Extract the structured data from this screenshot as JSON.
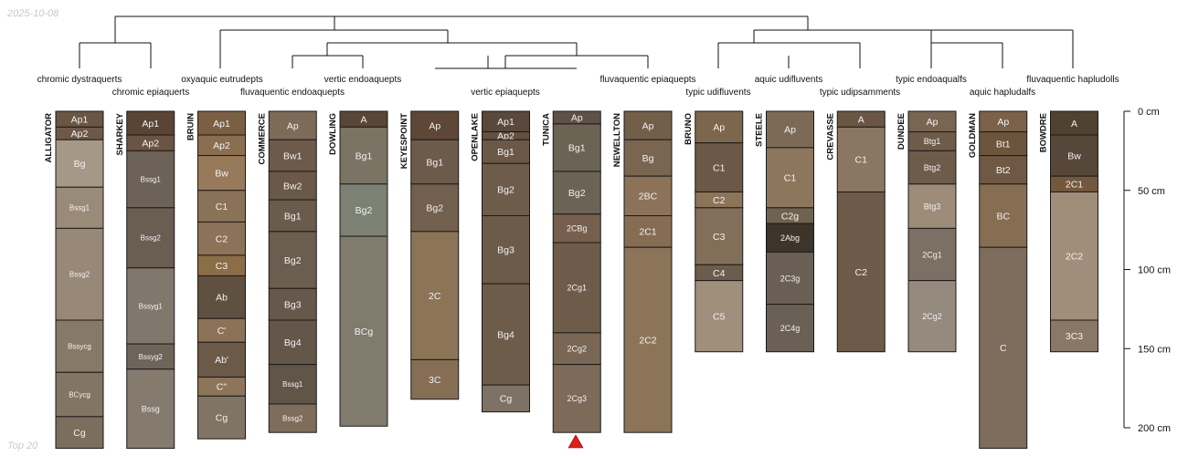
{
  "date": "2025-10-08",
  "footnote": "Top 20",
  "depth_axis": {
    "unit": "cm",
    "max": 200,
    "ticks": [
      "0 cm",
      "50 cm",
      "100 cm",
      "150 cm",
      "200 cm"
    ],
    "tick_values": [
      0,
      50,
      100,
      150,
      200
    ]
  },
  "taxa": {
    "t1": "chromic dystraquerts",
    "t2": "chromic epiaquerts",
    "t3": "oxyaquic eutrudepts",
    "t4": "fluvaquentic endoaquepts",
    "t5": "vertic endoaquepts",
    "t6": "vertic epiaquepts",
    "t7": "fluvaquentic epiaquepts",
    "t8": "typic udifluvents",
    "t9": "aquic udifluvents",
    "t10": "typic udipsamments",
    "t11": "typic endoaqualfs",
    "t12": "aquic hapludalfs",
    "t13": "fluvaquentic hapludolls"
  },
  "profiles": [
    {
      "name": "ALLIGATOR",
      "horizons": [
        {
          "name": "Ap1",
          "top": 0,
          "bottom": 10,
          "color": "#6b5644"
        },
        {
          "name": "Ap2",
          "top": 10,
          "bottom": 18,
          "color": "#6e5949"
        },
        {
          "name": "Bg",
          "top": 18,
          "bottom": 48,
          "color": "#a59886"
        },
        {
          "name": "Bssg1",
          "top": 48,
          "bottom": 74,
          "color": "#9a8b78"
        },
        {
          "name": "Bssg2",
          "top": 74,
          "bottom": 132,
          "color": "#978877"
        },
        {
          "name": "Bssycg",
          "top": 132,
          "bottom": 165,
          "color": "#877968"
        },
        {
          "name": "BCycg",
          "top": 165,
          "bottom": 193,
          "color": "#837563"
        },
        {
          "name": "Cg",
          "top": 193,
          "bottom": 213,
          "color": "#7b6e5d"
        }
      ]
    },
    {
      "name": "SHARKEY",
      "horizons": [
        {
          "name": "Ap1",
          "top": 0,
          "bottom": 15,
          "color": "#5a4535"
        },
        {
          "name": "Ap2",
          "top": 15,
          "bottom": 25,
          "color": "#6b5443"
        },
        {
          "name": "Bssg1",
          "top": 25,
          "bottom": 61,
          "color": "#6d6257"
        },
        {
          "name": "Bssg2",
          "top": 61,
          "bottom": 99,
          "color": "#6a5d52"
        },
        {
          "name": "Bssyg1",
          "top": 99,
          "bottom": 147,
          "color": "#80786c"
        },
        {
          "name": "Bssyg2",
          "top": 147,
          "bottom": 163,
          "color": "#6e655a"
        },
        {
          "name": "Bssg",
          "top": 163,
          "bottom": 213,
          "color": "#857a6e"
        }
      ]
    },
    {
      "name": "BRUIN",
      "horizons": [
        {
          "name": "Ap1",
          "top": 0,
          "bottom": 15,
          "color": "#7a5f42"
        },
        {
          "name": "Ap2",
          "top": 15,
          "bottom": 28,
          "color": "#8a6e50"
        },
        {
          "name": "Bw",
          "top": 28,
          "bottom": 50,
          "color": "#977a5a"
        },
        {
          "name": "C1",
          "top": 50,
          "bottom": 70,
          "color": "#8a7259"
        },
        {
          "name": "C2",
          "top": 70,
          "bottom": 91,
          "color": "#8b7258"
        },
        {
          "name": "C3",
          "top": 91,
          "bottom": 104,
          "color": "#8b6d48"
        },
        {
          "name": "Ab",
          "top": 104,
          "bottom": 131,
          "color": "#5f5040"
        },
        {
          "name": "C'",
          "top": 131,
          "bottom": 146,
          "color": "#8c7256"
        },
        {
          "name": "Ab'",
          "top": 146,
          "bottom": 168,
          "color": "#6b5a48"
        },
        {
          "name": "C''",
          "top": 168,
          "bottom": 180,
          "color": "#8c7559"
        },
        {
          "name": "Cg",
          "top": 180,
          "bottom": 207,
          "color": "#807565"
        }
      ]
    },
    {
      "name": "COMMERCE",
      "horizons": [
        {
          "name": "Ap",
          "top": 0,
          "bottom": 18,
          "color": "#7d6a57"
        },
        {
          "name": "Bw1",
          "top": 18,
          "bottom": 38,
          "color": "#6c5a4a"
        },
        {
          "name": "Bw2",
          "top": 38,
          "bottom": 56,
          "color": "#6a5948"
        },
        {
          "name": "Bg1",
          "top": 56,
          "bottom": 76,
          "color": "#6b5b4c"
        },
        {
          "name": "Bg2",
          "top": 76,
          "bottom": 112,
          "color": "#6b5d4f"
        },
        {
          "name": "Bg3",
          "top": 112,
          "bottom": 132,
          "color": "#66584a"
        },
        {
          "name": "Bg4",
          "top": 132,
          "bottom": 160,
          "color": "#645649"
        },
        {
          "name": "Bssg1",
          "top": 160,
          "bottom": 185,
          "color": "#615548"
        },
        {
          "name": "Bssg2",
          "top": 185,
          "bottom": 203,
          "color": "#7e6d5a"
        }
      ]
    },
    {
      "name": "DOWLING",
      "horizons": [
        {
          "name": "A",
          "top": 0,
          "bottom": 10,
          "color": "#5a4636"
        },
        {
          "name": "Bg1",
          "top": 10,
          "bottom": 46,
          "color": "#7b7363"
        },
        {
          "name": "Bg2",
          "top": 46,
          "bottom": 79,
          "color": "#7c8173"
        },
        {
          "name": "BCg",
          "top": 79,
          "bottom": 199,
          "color": "#817b6e"
        }
      ]
    },
    {
      "name": "KEYESPOINT",
      "horizons": [
        {
          "name": "Ap",
          "top": 0,
          "bottom": 18,
          "color": "#5e4737"
        },
        {
          "name": "Bg1",
          "top": 18,
          "bottom": 46,
          "color": "#6c5a4b"
        },
        {
          "name": "Bg2",
          "top": 46,
          "bottom": 76,
          "color": "#725f4d"
        },
        {
          "name": "2C",
          "top": 76,
          "bottom": 157,
          "color": "#8c7457"
        },
        {
          "name": "3C",
          "top": 157,
          "bottom": 182,
          "color": "#866e55"
        }
      ]
    },
    {
      "name": "OPENLAKE",
      "horizons": [
        {
          "name": "Ap1",
          "top": 0,
          "bottom": 13,
          "color": "#59483b"
        },
        {
          "name": "Ap2",
          "top": 13,
          "bottom": 18,
          "color": "#645140"
        },
        {
          "name": "Bg1",
          "top": 18,
          "bottom": 33,
          "color": "#6b5847"
        },
        {
          "name": "Bg2",
          "top": 33,
          "bottom": 66,
          "color": "#6e5c4b"
        },
        {
          "name": "Bg3",
          "top": 66,
          "bottom": 109,
          "color": "#6d5b4a"
        },
        {
          "name": "Bg4",
          "top": 109,
          "bottom": 173,
          "color": "#6e5c4a"
        },
        {
          "name": "Cg",
          "top": 173,
          "bottom": 190,
          "color": "#7e7264"
        }
      ]
    },
    {
      "name": "TUNICA",
      "horizons": [
        {
          "name": "Ap",
          "top": 0,
          "bottom": 8,
          "color": "#5f5147"
        },
        {
          "name": "Bg1",
          "top": 8,
          "bottom": 38,
          "color": "#6b6455"
        },
        {
          "name": "Bg2",
          "top": 38,
          "bottom": 65,
          "color": "#6b6356"
        },
        {
          "name": "2CBg",
          "top": 65,
          "bottom": 83,
          "color": "#765f4d"
        },
        {
          "name": "2Cg1",
          "top": 83,
          "bottom": 140,
          "color": "#6e5b4a"
        },
        {
          "name": "2Cg2",
          "top": 140,
          "bottom": 160,
          "color": "#7a6655"
        },
        {
          "name": "2Cg3",
          "top": 160,
          "bottom": 203,
          "color": "#7d6a58"
        }
      ]
    },
    {
      "name": "NEWELLTON",
      "horizons": [
        {
          "name": "Ap",
          "top": 0,
          "bottom": 18,
          "color": "#735e4a"
        },
        {
          "name": "Bg",
          "top": 18,
          "bottom": 41,
          "color": "#7a6551"
        },
        {
          "name": "2BC",
          "top": 41,
          "bottom": 66,
          "color": "#8c7258"
        },
        {
          "name": "2C1",
          "top": 66,
          "bottom": 86,
          "color": "#866c53"
        },
        {
          "name": "2C2",
          "top": 86,
          "bottom": 203,
          "color": "#8c7458"
        }
      ]
    },
    {
      "name": "BRUNO",
      "horizons": [
        {
          "name": "Ap",
          "top": 0,
          "bottom": 20,
          "color": "#7c664c"
        },
        {
          "name": "C1",
          "top": 20,
          "bottom": 51,
          "color": "#6b5847"
        },
        {
          "name": "C2",
          "top": 51,
          "bottom": 61,
          "color": "#8e7457"
        },
        {
          "name": "C3",
          "top": 61,
          "bottom": 97,
          "color": "#836e5a"
        },
        {
          "name": "C4",
          "top": 97,
          "bottom": 107,
          "color": "#6b5c4c"
        },
        {
          "name": "C5",
          "top": 107,
          "bottom": 152,
          "color": "#a08f7b"
        }
      ]
    },
    {
      "name": "STEELE",
      "horizons": [
        {
          "name": "Ap",
          "top": 0,
          "bottom": 23,
          "color": "#7d6a56"
        },
        {
          "name": "C1",
          "top": 23,
          "bottom": 61,
          "color": "#8d775c"
        },
        {
          "name": "C2g",
          "top": 61,
          "bottom": 71,
          "color": "#6e6350"
        },
        {
          "name": "2Abg",
          "top": 71,
          "bottom": 89,
          "color": "#3d342a"
        },
        {
          "name": "2C3g",
          "top": 89,
          "bottom": 122,
          "color": "#6a5f55"
        },
        {
          "name": "2C4g",
          "top": 122,
          "bottom": 152,
          "color": "#6b6055"
        }
      ]
    },
    {
      "name": "CREVASSE",
      "horizons": [
        {
          "name": "A",
          "top": 0,
          "bottom": 10,
          "color": "#6b5644"
        },
        {
          "name": "C1",
          "top": 10,
          "bottom": 51,
          "color": "#8a7663"
        },
        {
          "name": "C2",
          "top": 51,
          "bottom": 152,
          "color": "#6e5a48"
        }
      ]
    },
    {
      "name": "DUNDEE",
      "horizons": [
        {
          "name": "Ap",
          "top": 0,
          "bottom": 13,
          "color": "#7a6551"
        },
        {
          "name": "Btg1",
          "top": 13,
          "bottom": 25,
          "color": "#6e5b49"
        },
        {
          "name": "Btg2",
          "top": 25,
          "bottom": 46,
          "color": "#6e5c4b"
        },
        {
          "name": "Btg3",
          "top": 46,
          "bottom": 74,
          "color": "#9c8c78"
        },
        {
          "name": "2Cg1",
          "top": 74,
          "bottom": 107,
          "color": "#7b7063"
        },
        {
          "name": "2Cg2",
          "top": 107,
          "bottom": 152,
          "color": "#948a7e"
        }
      ]
    },
    {
      "name": "GOLDMAN",
      "horizons": [
        {
          "name": "Ap",
          "top": 0,
          "bottom": 13,
          "color": "#7a6148"
        },
        {
          "name": "Bt1",
          "top": 13,
          "bottom": 28,
          "color": "#6c543d"
        },
        {
          "name": "Bt2",
          "top": 28,
          "bottom": 46,
          "color": "#6f5844"
        },
        {
          "name": "BC",
          "top": 46,
          "bottom": 86,
          "color": "#876d52"
        },
        {
          "name": "C",
          "top": 86,
          "bottom": 213,
          "color": "#7e6c5c"
        }
      ]
    },
    {
      "name": "BOWDRE",
      "horizons": [
        {
          "name": "A",
          "top": 0,
          "bottom": 15,
          "color": "#504131"
        },
        {
          "name": "Bw",
          "top": 15,
          "bottom": 41,
          "color": "#57473a"
        },
        {
          "name": "2C1",
          "top": 41,
          "bottom": 51,
          "color": "#73583e"
        },
        {
          "name": "2C2",
          "top": 51,
          "bottom": 132,
          "color": "#a08e7a"
        },
        {
          "name": "3C3",
          "top": 132,
          "bottom": 152,
          "color": "#8a7866"
        }
      ]
    }
  ]
}
